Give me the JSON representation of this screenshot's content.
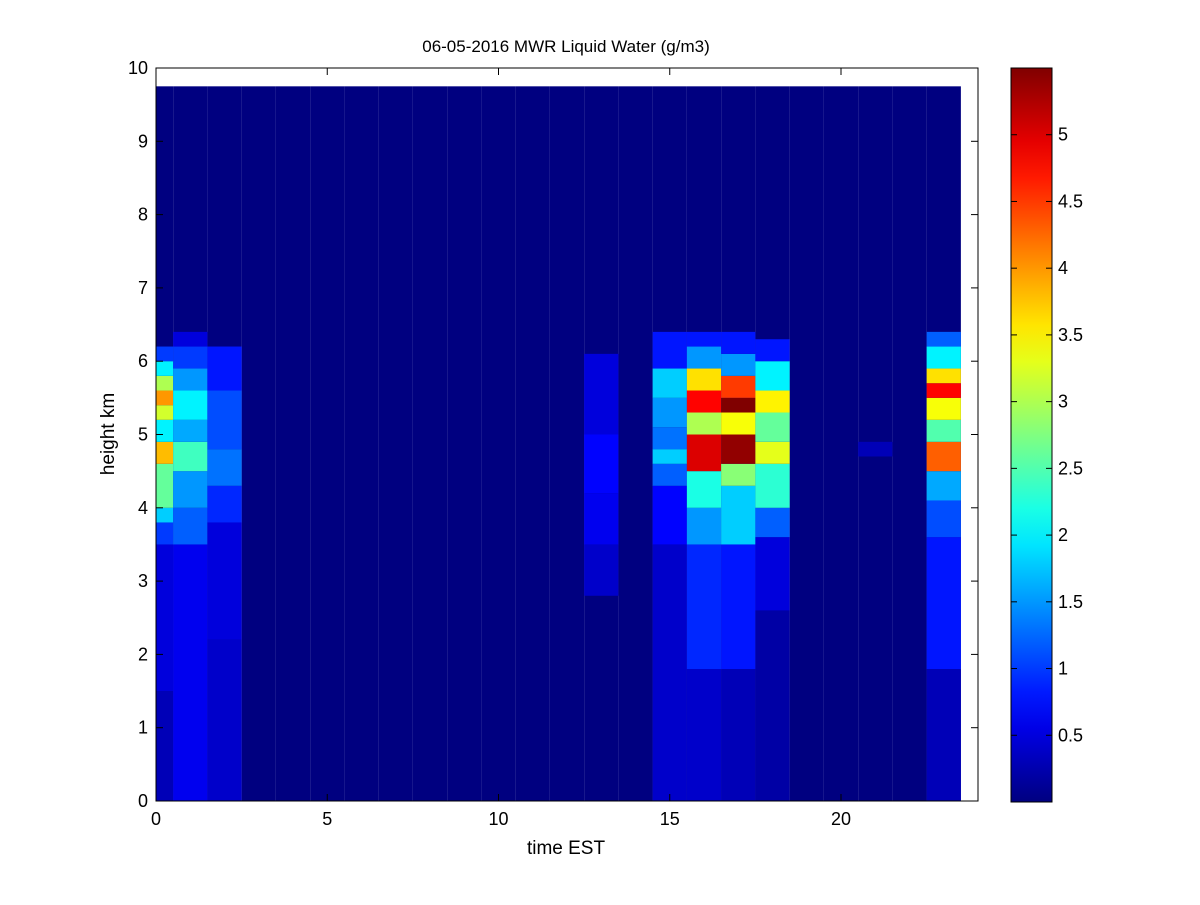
{
  "chart_data": {
    "type": "heatmap",
    "title": "06-05-2016 MWR Liquid Water (g/m3)",
    "xlabel": "time EST",
    "ylabel": "height km",
    "xlim": [
      0,
      24
    ],
    "ylim": [
      0,
      10
    ],
    "x_ticks": [
      0,
      5,
      10,
      15,
      20
    ],
    "y_ticks": [
      0,
      1,
      2,
      3,
      4,
      5,
      6,
      7,
      8,
      9,
      10
    ],
    "colorbar": {
      "colormap": "jet",
      "range": [
        0,
        5.5
      ],
      "ticks": [
        0.5,
        1,
        1.5,
        2,
        2.5,
        3,
        3.5,
        4,
        4.5,
        5
      ],
      "tick_labels": [
        "0.5",
        "1",
        "1.5",
        "2",
        "2.5",
        "3",
        "3.5",
        "4",
        "4.5",
        "5"
      ]
    },
    "grid": false,
    "x_centers": [
      0,
      1,
      2,
      3,
      4,
      5,
      6,
      7,
      8,
      9,
      10,
      11,
      12,
      13,
      14,
      15,
      16,
      17,
      18,
      19,
      20,
      21,
      22,
      23
    ],
    "height_top_km": 9.75,
    "background_value": 0.0,
    "columns": [
      {
        "time": 0,
        "profile": [
          [
            0,
            1.5,
            0.3
          ],
          [
            1.5,
            3.5,
            0.5
          ],
          [
            3.5,
            3.8,
            1.0
          ],
          [
            3.8,
            4.0,
            1.8
          ],
          [
            4.0,
            4.6,
            2.6
          ],
          [
            4.6,
            4.9,
            3.8
          ],
          [
            4.9,
            5.2,
            2.0
          ],
          [
            5.2,
            5.4,
            3.2
          ],
          [
            5.4,
            5.6,
            4.0
          ],
          [
            5.6,
            5.8,
            3.0
          ],
          [
            5.8,
            6.0,
            2.0
          ],
          [
            6.0,
            6.2,
            1.0
          ]
        ]
      },
      {
        "time": 1,
        "profile": [
          [
            0,
            3.5,
            0.6
          ],
          [
            3.5,
            4.0,
            1.2
          ],
          [
            4.0,
            4.5,
            1.5
          ],
          [
            4.5,
            4.9,
            2.4
          ],
          [
            4.9,
            5.2,
            1.6
          ],
          [
            5.2,
            5.6,
            2.0
          ],
          [
            5.6,
            5.9,
            1.5
          ],
          [
            5.9,
            6.2,
            1.0
          ],
          [
            6.2,
            6.4,
            0.5
          ]
        ]
      },
      {
        "time": 2,
        "profile": [
          [
            0,
            2.2,
            0.4
          ],
          [
            2.2,
            3.8,
            0.5
          ],
          [
            3.8,
            4.3,
            0.9
          ],
          [
            4.3,
            4.8,
            1.3
          ],
          [
            4.8,
            5.6,
            1.1
          ],
          [
            5.6,
            6.2,
            0.8
          ]
        ]
      },
      {
        "time": 13,
        "profile": [
          [
            2.8,
            3.5,
            0.4
          ],
          [
            3.5,
            4.2,
            0.6
          ],
          [
            4.2,
            5.0,
            0.7
          ],
          [
            5.0,
            6.1,
            0.5
          ]
        ]
      },
      {
        "time": 15,
        "profile": [
          [
            0,
            3.5,
            0.4
          ],
          [
            3.5,
            4.3,
            0.7
          ],
          [
            4.3,
            4.6,
            1.2
          ],
          [
            4.6,
            4.8,
            1.8
          ],
          [
            4.8,
            5.1,
            1.3
          ],
          [
            5.1,
            5.5,
            1.5
          ],
          [
            5.5,
            5.9,
            1.8
          ],
          [
            5.9,
            6.4,
            0.8
          ]
        ]
      },
      {
        "time": 16,
        "profile": [
          [
            0,
            1.8,
            0.4
          ],
          [
            1.8,
            3.5,
            0.9
          ],
          [
            3.5,
            4.0,
            1.5
          ],
          [
            4.0,
            4.5,
            2.2
          ],
          [
            4.5,
            5.0,
            5.0
          ],
          [
            5.0,
            5.3,
            3.0
          ],
          [
            5.3,
            5.6,
            4.8
          ],
          [
            5.6,
            5.9,
            3.6
          ],
          [
            5.9,
            6.2,
            1.5
          ],
          [
            6.2,
            6.4,
            0.8
          ]
        ]
      },
      {
        "time": 17,
        "profile": [
          [
            0,
            1.8,
            0.3
          ],
          [
            1.8,
            3.5,
            0.8
          ],
          [
            3.5,
            4.3,
            1.8
          ],
          [
            4.3,
            4.6,
            2.8
          ],
          [
            4.6,
            5.0,
            5.4
          ],
          [
            5.0,
            5.3,
            3.4
          ],
          [
            5.3,
            5.5,
            5.5
          ],
          [
            5.5,
            5.8,
            4.5
          ],
          [
            5.8,
            6.1,
            1.5
          ],
          [
            6.1,
            6.4,
            0.8
          ]
        ]
      },
      {
        "time": 18,
        "profile": [
          [
            0,
            2.6,
            0.2
          ],
          [
            2.6,
            3.6,
            0.5
          ],
          [
            3.6,
            4.0,
            1.2
          ],
          [
            4.0,
            4.6,
            2.3
          ],
          [
            4.6,
            4.9,
            3.3
          ],
          [
            4.9,
            5.3,
            2.6
          ],
          [
            5.3,
            5.6,
            3.5
          ],
          [
            5.6,
            6.0,
            2.0
          ],
          [
            6.0,
            6.3,
            0.8
          ]
        ]
      },
      {
        "time": 21,
        "profile": [
          [
            4.7,
            4.9,
            0.3
          ]
        ]
      },
      {
        "time": 23,
        "profile": [
          [
            0,
            1.8,
            0.3
          ],
          [
            1.8,
            3.6,
            0.8
          ],
          [
            3.6,
            4.1,
            1.1
          ],
          [
            4.1,
            4.5,
            1.6
          ],
          [
            4.5,
            4.9,
            4.3
          ],
          [
            4.9,
            5.2,
            2.5
          ],
          [
            5.2,
            5.5,
            3.4
          ],
          [
            5.5,
            5.7,
            4.8
          ],
          [
            5.7,
            5.9,
            3.6
          ],
          [
            5.9,
            6.2,
            2.0
          ],
          [
            6.2,
            6.4,
            1.2
          ]
        ]
      }
    ]
  }
}
